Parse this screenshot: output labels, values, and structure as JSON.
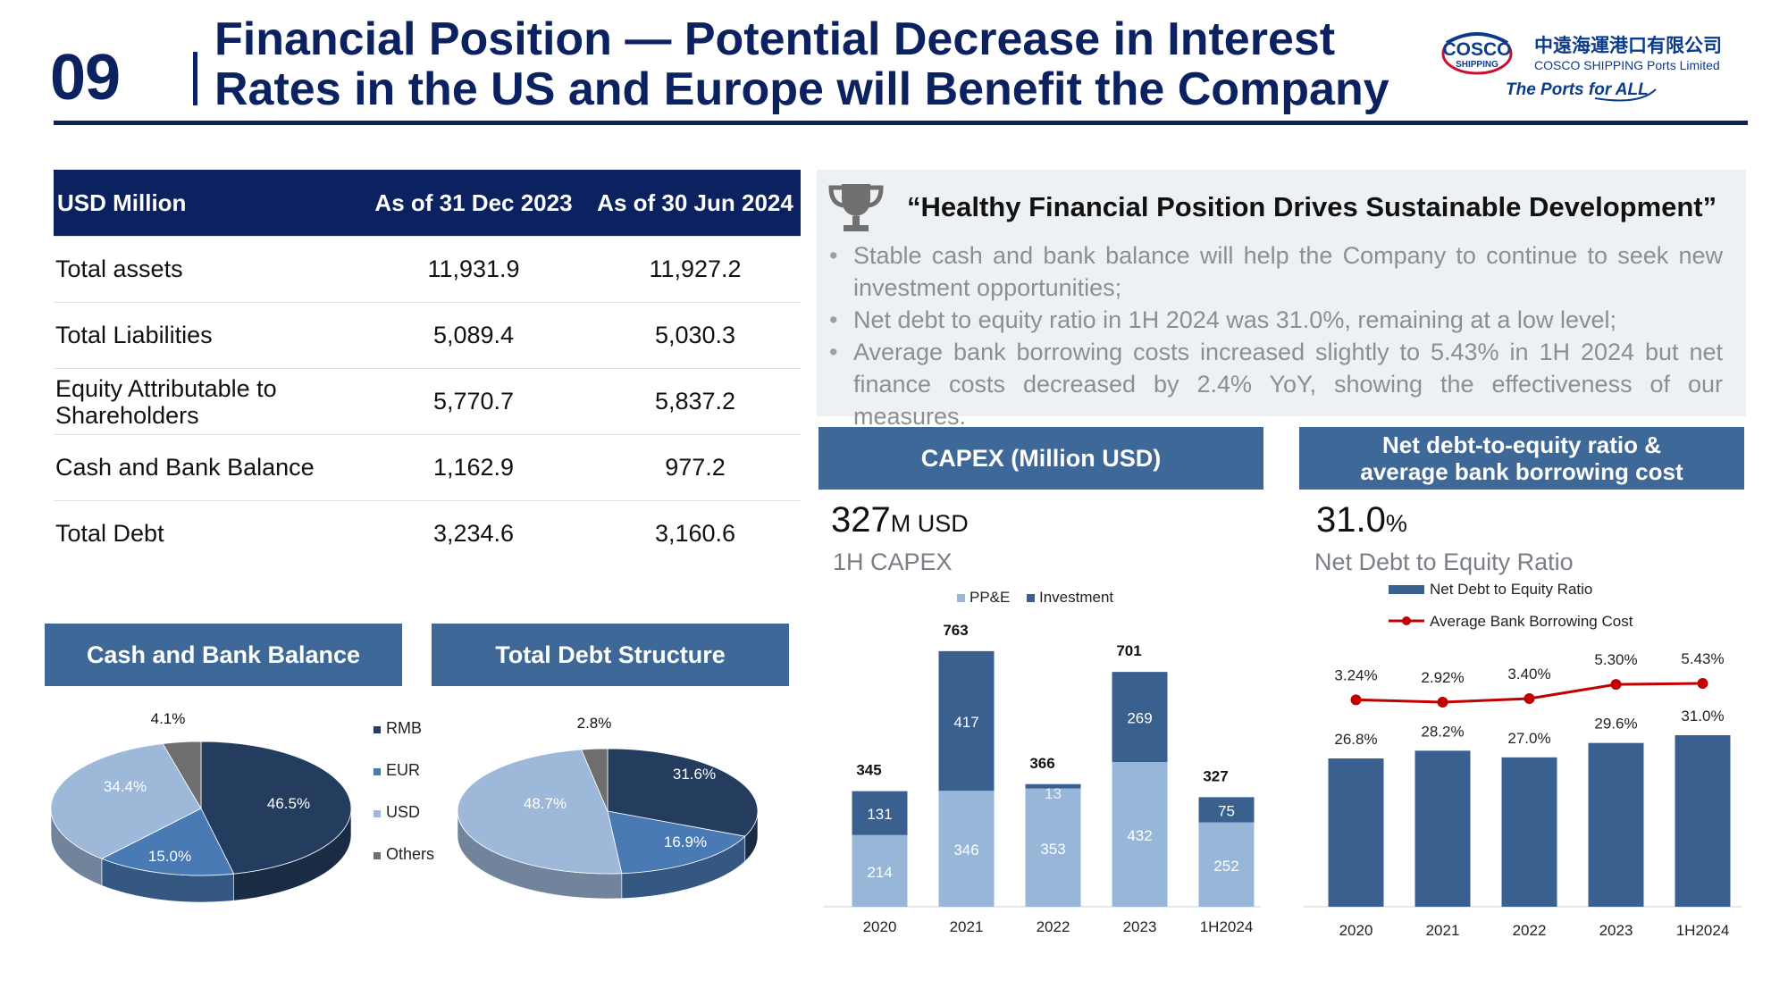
{
  "page_number": "09",
  "title_line1": "Financial Position — Potential Decrease in Interest",
  "title_line2": "Rates in the US and Europe will Benefit the Company",
  "logo": {
    "brand": "COSCO",
    "brand_sub": "SHIPPING",
    "cn": "中遠海運港口有限公司",
    "en": "COSCO SHIPPING Ports Limited",
    "tagline": "The Ports for ALL"
  },
  "table": {
    "headers": [
      "USD Million",
      "As of 31 Dec 2023",
      "As of 30 Jun 2024"
    ],
    "rows": [
      [
        "Total assets",
        "11,931.9",
        "11,927.2"
      ],
      [
        "Total Liabilities",
        "5,089.4",
        "5,030.3"
      ],
      [
        "Equity Attributable to Shareholders",
        "5,770.7",
        "5,837.2"
      ],
      [
        "Cash and Bank Balance",
        "1,162.9",
        "977.2"
      ],
      [
        "Total Debt",
        "3,234.6",
        "3,160.6"
      ]
    ]
  },
  "quote": {
    "title": "“Healthy Financial Position Drives Sustainable Development”",
    "bullets": [
      "Stable cash and bank balance will help the Company to continue to seek new investment opportunities;",
      "Net debt to equity ratio in 1H 2024 was 31.0%,  remaining at a low level;",
      "Average bank borrowing costs increased slightly to 5.43% in 1H 2024 but net finance costs decreased by 2.4% YoY, showing the effectiveness of our measures."
    ]
  },
  "capex_panel": {
    "header": "CAPEX (Million USD)",
    "big_value": "327",
    "big_unit": "M USD",
    "caption": "1H CAPEX"
  },
  "ratio_panel": {
    "header_line1": "Net debt-to-equity ratio &",
    "header_line2": "average bank borrowing cost",
    "big_value": "31.0",
    "big_unit": "%",
    "caption": "Net Debt to Equity Ratio"
  },
  "cash_panel": {
    "header": "Cash and Bank Balance"
  },
  "debt_panel": {
    "header": "Total Debt Structure"
  },
  "chart_data": [
    {
      "type": "pie",
      "title": "Cash and Bank Balance",
      "labels": [
        "RMB",
        "EUR",
        "USD",
        "Others"
      ],
      "values": [
        46.5,
        15.0,
        34.4,
        4.1
      ],
      "value_labels": [
        "46.5%",
        "15.0%",
        "34.4%",
        "4.1%"
      ],
      "colors": [
        "#243c5e",
        "#4a7ab4",
        "#9db8d9",
        "#6e6e6e"
      ],
      "legend_position": "right"
    },
    {
      "type": "pie",
      "title": "Total Debt Structure",
      "labels": [
        "RMB",
        "EUR",
        "USD",
        "Others"
      ],
      "values": [
        31.6,
        16.9,
        48.7,
        2.8
      ],
      "value_labels": [
        "31.6%",
        "16.9%",
        "48.7%",
        "2.8%"
      ],
      "colors": [
        "#243c5e",
        "#4a7ab4",
        "#9db8d9",
        "#6e6e6e"
      ]
    },
    {
      "type": "bar",
      "stacked": true,
      "categories": [
        "2020",
        "2021",
        "2022",
        "2023",
        "1H2024"
      ],
      "series": [
        {
          "name": "PP&E",
          "values": [
            214,
            346,
            353,
            432,
            252
          ],
          "color": "#97b6d8"
        },
        {
          "name": "Investment",
          "values": [
            131,
            417,
            13,
            269,
            75
          ],
          "color": "#3a6090"
        }
      ],
      "totals": [
        345,
        763,
        366,
        701,
        327
      ],
      "ylim": [
        0,
        800
      ],
      "legend_position": "top"
    },
    {
      "type": "bar",
      "categories": [
        "2020",
        "2021",
        "2022",
        "2023",
        "1H2024"
      ],
      "series": [
        {
          "name": "Net Debt to Equity Ratio",
          "values": [
            26.8,
            28.2,
            27.0,
            29.6,
            31.0
          ],
          "labels": [
            "26.8%",
            "28.2%",
            "27.0%",
            "29.6%",
            "31.0%"
          ],
          "color": "#3a6090"
        },
        {
          "name": "Average Bank Borrowing Cost",
          "type": "line",
          "values": [
            3.24,
            2.92,
            3.4,
            5.3,
            5.43
          ],
          "labels": [
            "3.24%",
            "2.92%",
            "3.40%",
            "5.30%",
            "5.43%"
          ],
          "color": "#c00000"
        }
      ],
      "legend_position": "top"
    }
  ]
}
